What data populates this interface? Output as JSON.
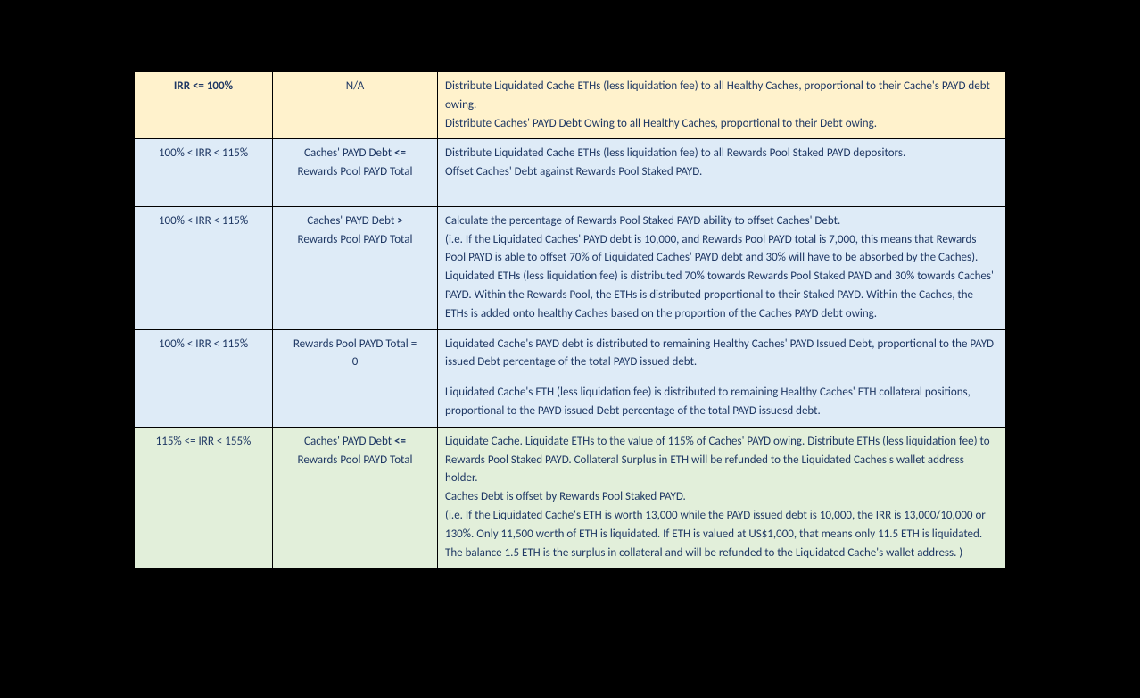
{
  "colors": {
    "page_bg": "#000000",
    "text": "#1f3864",
    "border": "#000000",
    "row_yellow": "#fff2cc",
    "row_blue": "#deebf7",
    "row_green": "#e2efda"
  },
  "columns": {
    "col1_role": "IRR condition",
    "col2_role": "Secondary condition",
    "col3_role": "Action / description"
  },
  "rows": [
    {
      "band": "yellow",
      "irr_prefix": "IRR <= ",
      "irr_value": "100%",
      "cond": "N/A",
      "desc_p1": "Distribute Liquidated Cache ETHs (less liquidation fee) to all Healthy Caches, proportional to their Cache's PAYD debt owing.",
      "desc_p2": "Distribute Caches' PAYD Debt Owing to all Healthy Caches, proportional to their Debt owing."
    },
    {
      "band": "blue",
      "irr": "100% < IRR < 115%",
      "cond_l1": "Caches' PAYD Debt <=",
      "cond_l2": "Rewards Pool PAYD Total",
      "desc_p1": "Distribute Liquidated Cache ETHs (less liquidation fee) to all Rewards Pool Staked PAYD depositors.",
      "desc_p2": "Offset Caches' Debt against Rewards Pool Staked PAYD."
    },
    {
      "band": "blue",
      "irr": "100% < IRR < 115%",
      "cond_l1": "Caches' PAYD Debt >",
      "cond_l2": "Rewards Pool PAYD Total",
      "desc_p1": "Calculate the percentage of Rewards Pool Staked PAYD ability to offset Caches' Debt.",
      "desc_p2": "(i.e. If the Liquidated Caches' PAYD debt is 10,000, and Rewards Pool PAYD total is 7,000, this means that Rewards Pool PAYD is able to offset 70% of Liquidated Caches' PAYD debt and 30% will have to be absorbed by the Caches).",
      "desc_p3": "Liquidated ETHs (less liquidation fee) is distributed 70% towards Rewards Pool Staked PAYD and 30% towards Caches' PAYD. Within the Rewards Pool, the ETHs is distributed proportional to  their Staked PAYD. Within the Caches, the ETHs is added onto healthy Caches based on the proportion of the Caches PAYD debt owing."
    },
    {
      "band": "blue",
      "irr": "100% < IRR < 115%",
      "cond_l1": "Rewards Pool PAYD Total =",
      "cond_l2": "0",
      "desc_p1": "Liquidated Cache's PAYD debt is distributed to remaining Healthy Caches' PAYD Issued Debt, proportional to the PAYD issued Debt percentage of the total PAYD issued debt.",
      "desc_p2": "Liquidated Cache's ETH (less liquidation fee) is distributed to remaining Healthy Caches' ETH collateral positions, proportional to the PAYD issued Debt percentage of the total PAYD issuesd debt."
    },
    {
      "band": "green",
      "irr": "115% <= IRR < 155%",
      "cond_l1": "Caches' PAYD Debt <=",
      "cond_l2": "Rewards Pool PAYD Total",
      "desc_p1": "Liquidate Cache. Liquidate ETHs to the value of 115% of Caches' PAYD owing. Distribute ETHs (less liquidation fee) to Rewards Pool Staked PAYD. Collateral Surplus in ETH will be refunded to the Liquidated Caches's wallet address holder.",
      "desc_p2": "Caches Debt is offset by Rewards Pool Staked PAYD.",
      "desc_p3": "(i.e. If the Liquidated Cache's ETH is worth 13,000 while the PAYD issued debt is 10,000, the IRR is 13,000/10,000 or 130%. Only 11,500 worth of ETH is liquidated. If ETH is valued at US$1,000, that means only 11.5 ETH is liquidated. The balance 1.5 ETH is the surplus in collateral and will be refunded to the Liquidated Cache's wallet address. )"
    }
  ]
}
